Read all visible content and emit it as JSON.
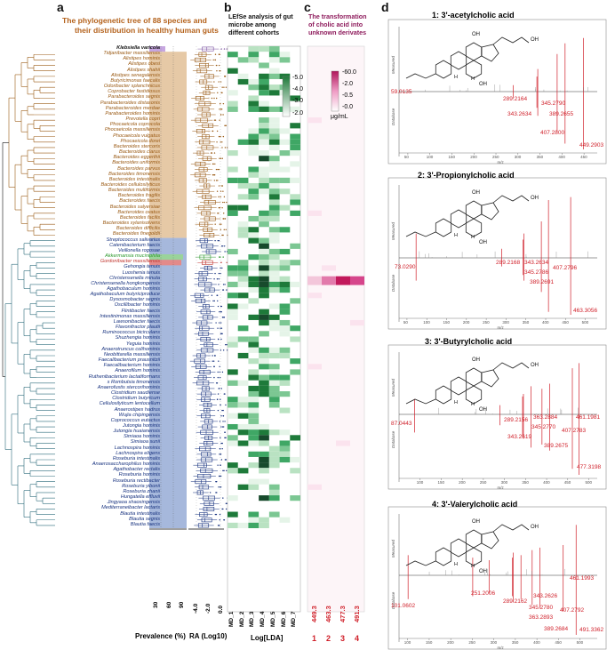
{
  "panel_labels": {
    "a": "a",
    "b": "b",
    "c": "c",
    "d": "d"
  },
  "panel_a": {
    "title_line1": "The phylogenetic tree of 88 species and",
    "title_line2": "their distribution in healthy human guts",
    "prevalence_label": "Prevalence (%)",
    "ra_label": "RA (Log10)",
    "prevalence_ticks": [
      "30",
      "60",
      "90"
    ],
    "ra_ticks": [
      "-4.0",
      "-2.0",
      "0.0"
    ],
    "colors": {
      "brown": "#9a5a14",
      "blue": "#17327f",
      "green": "#2e9a2e",
      "red": "#c0342c"
    },
    "species": [
      {
        "name": "Klebsiella varicola",
        "c": "k"
      },
      {
        "name": "Tidjanibacter massiliensis",
        "c": "brown"
      },
      {
        "name": "Alistipes hominis",
        "c": "brown"
      },
      {
        "name": "Alistipes obesi",
        "c": "brown"
      },
      {
        "name": "Alistipes shahii",
        "c": "brown"
      },
      {
        "name": "Alistipes senegalensis",
        "c": "brown"
      },
      {
        "name": "Butyricimonas faecalis",
        "c": "brown"
      },
      {
        "name": "Odoribacter splanchnicus",
        "c": "brown"
      },
      {
        "name": "Coprobacter fastidiosus",
        "c": "brown"
      },
      {
        "name": "Parabacteroides segnis",
        "c": "brown"
      },
      {
        "name": "Parabacteroides distasonis",
        "c": "brown"
      },
      {
        "name": "Parabacteroides merdae",
        "c": "brown"
      },
      {
        "name": "Parabacteroides hominis",
        "c": "brown"
      },
      {
        "name": "Prevotella copri",
        "c": "brown"
      },
      {
        "name": "Phocaeicola coprocola",
        "c": "brown"
      },
      {
        "name": "Phocaeicola massiliensis",
        "c": "brown"
      },
      {
        "name": "Phocaeicola vulgatus",
        "c": "brown"
      },
      {
        "name": "Phocaeicola dorei",
        "c": "brown"
      },
      {
        "name": "Bacteroides stercoris",
        "c": "brown"
      },
      {
        "name": "Bacteroides clarus",
        "c": "brown"
      },
      {
        "name": "Bacteroides eggerthii",
        "c": "brown"
      },
      {
        "name": "Bacteroides uniformis",
        "c": "brown"
      },
      {
        "name": "Bacteroides parvus",
        "c": "brown"
      },
      {
        "name": "Bacteroides timonensis",
        "c": "brown"
      },
      {
        "name": "Bacteroides intestinalis",
        "c": "brown"
      },
      {
        "name": "Bacteroides cellulosilyticus",
        "c": "brown"
      },
      {
        "name": "Bacteroides multiformis",
        "c": "brown"
      },
      {
        "name": "Bacteroides fragilis",
        "c": "brown"
      },
      {
        "name": "Bacteroides faecis",
        "c": "brown"
      },
      {
        "name": "Bacteroides salyersiae",
        "c": "brown"
      },
      {
        "name": "Bacteroides ovatus",
        "c": "brown"
      },
      {
        "name": "Bacteroides facilis",
        "c": "brown"
      },
      {
        "name": "Bacteroides xylanisolvens",
        "c": "brown"
      },
      {
        "name": "Bacteroides difficilis",
        "c": "brown"
      },
      {
        "name": "Bacteroides finegoldii",
        "c": "brown"
      },
      {
        "name": "Streptococcus salivarius",
        "c": "blue"
      },
      {
        "name": "Catenibacterium faecis",
        "c": "blue"
      },
      {
        "name": "Veillonella rogosae",
        "c": "blue"
      },
      {
        "name": "Akkermansia muciniphila",
        "c": "green"
      },
      {
        "name": "Gordonibacter massiliensis",
        "c": "red"
      },
      {
        "name": "Gehongia tenuis",
        "c": "blue"
      },
      {
        "name": "Luoshenia tenuis",
        "c": "blue"
      },
      {
        "name": "Christensenella minuta",
        "c": "blue"
      },
      {
        "name": "Christensenella hongkongensis",
        "c": "blue"
      },
      {
        "name": "Agathobaculum hominis",
        "c": "blue"
      },
      {
        "name": "Agathobaculum butyriciproduce",
        "c": "blue"
      },
      {
        "name": "Dysosmobacter segnis",
        "c": "blue"
      },
      {
        "name": "Oscillibacter hominis",
        "c": "blue"
      },
      {
        "name": "Flintibacter faecis",
        "c": "blue"
      },
      {
        "name": "Intestinimonas massiliensis",
        "c": "blue"
      },
      {
        "name": "Lawsonibacter faecis",
        "c": "blue"
      },
      {
        "name": "Flavonifractor plautii",
        "c": "blue"
      },
      {
        "name": "Ruminococcus bicirculans",
        "c": "blue"
      },
      {
        "name": "Shuzhengia hominis",
        "c": "blue"
      },
      {
        "name": "Yeguia hominis",
        "c": "blue"
      },
      {
        "name": "Anaerotruncus colihominis",
        "c": "blue"
      },
      {
        "name": "Neobittarella massiliensis",
        "c": "blue"
      },
      {
        "name": "Faecalibacterium prausnitzii",
        "c": "blue"
      },
      {
        "name": "Faecalibacterium hominis",
        "c": "blue"
      },
      {
        "name": "Anaerofilum hominis",
        "c": "blue"
      },
      {
        "name": "Ruthenibacterium lactatiformans",
        "c": "blue"
      },
      {
        "name": "s Rombutsia timonensis",
        "c": "blue"
      },
      {
        "name": "Anaerofustis stercorihominis",
        "c": "blue"
      },
      {
        "name": "Clostridium saudiense",
        "c": "blue"
      },
      {
        "name": "Clostridium butyricum",
        "c": "blue"
      },
      {
        "name": "Cellulosilyticum lentocellum",
        "c": "blue"
      },
      {
        "name": "Anaerostipes hadrus",
        "c": "blue"
      },
      {
        "name": "Wujia chipingensis",
        "c": "blue"
      },
      {
        "name": "Coprococcus eutactus",
        "c": "blue"
      },
      {
        "name": "Jutongia hominis",
        "c": "blue"
      },
      {
        "name": "Jutongia huaianensis",
        "c": "blue"
      },
      {
        "name": "Simiaoa hominis",
        "c": "blue"
      },
      {
        "name": "Simiaoa sunii",
        "c": "blue"
      },
      {
        "name": "Lachnospira hominis",
        "c": "blue"
      },
      {
        "name": "Lachnospira eligens",
        "c": "blue"
      },
      {
        "name": "Roseburia intestinalis",
        "c": "blue"
      },
      {
        "name": "Anaerosaccharophilus hominis",
        "c": "blue"
      },
      {
        "name": "Agathobacter rectalis",
        "c": "blue"
      },
      {
        "name": "Roseburia hominis",
        "c": "blue"
      },
      {
        "name": "Roseburia rectibacter",
        "c": "blue"
      },
      {
        "name": "Roseburia yibonii",
        "c": "blue"
      },
      {
        "name": "Roseburia zhanii",
        "c": "blue"
      },
      {
        "name": "Hungatella effluvii",
        "c": "blue"
      },
      {
        "name": "Jingyaoa shaoxingensis",
        "c": "blue"
      },
      {
        "name": "Mediterraneibacter lactaris",
        "c": "blue"
      },
      {
        "name": "Blautia intestinalis",
        "c": "blue"
      },
      {
        "name": "Blautia segnis",
        "c": "blue"
      },
      {
        "name": "Blautia faecis",
        "c": "blue"
      }
    ]
  },
  "panel_b": {
    "title_line1": "LEfSe analysis of gut",
    "title_line2": "microbe among",
    "title_line3": "different cohorts",
    "columns": [
      "MD_1",
      "MD_2",
      "MD_3",
      "MD_4",
      "MD_5",
      "MD_6",
      "MD_7"
    ],
    "xlabel": "Log[LDA]",
    "legend_ticks": [
      "-5.0",
      "-4.0",
      "-3.0",
      "-2.0"
    ],
    "legend_low_color": "#ffffff",
    "legend_high_color": "#1e7a3a"
  },
  "panel_c": {
    "title_line1": "The transformation",
    "title_line2": "of cholic acid into",
    "title_line3": "unknown derivates",
    "columns": [
      "449.3",
      "463.3",
      "477.3",
      "491.3"
    ],
    "column_numbers": [
      "1",
      "2",
      "3",
      "4"
    ],
    "legend_ticks": [
      "-60.0",
      "-2.0",
      "-0.5",
      "-0.0"
    ],
    "legend_unit": "μg/mL",
    "accent": "#c2185b"
  },
  "panel_d": {
    "spectra": [
      {
        "title": "1: 3'-acetylcholic acid",
        "peaks": [
          "59.0135",
          "289.2164",
          "345.2790",
          "343.2634",
          "389.2655",
          "407.2800",
          "449.2903"
        ],
        "axis_ticks": [
          "50",
          "100",
          "150",
          "200",
          "250",
          "300",
          "350",
          "400",
          "450"
        ]
      },
      {
        "title": "2: 3'-Propionylcholic acid",
        "peaks": [
          "73.0290",
          "289.2168",
          "343.2634",
          "345.2786",
          "407.2796",
          "389.2691",
          "463.3056"
        ],
        "axis_ticks": [
          "50",
          "100",
          "150",
          "200",
          "250",
          "300",
          "350",
          "400",
          "450",
          "500"
        ]
      },
      {
        "title": "3: 3'-Butyrylcholic acid",
        "peaks": [
          "87.0443",
          "289.2156",
          "363.2884",
          "345.2770",
          "407.2783",
          "343.2619",
          "389.2675",
          "461.1981",
          "477.3198"
        ],
        "axis_ticks": [
          "100",
          "150",
          "200",
          "250",
          "300",
          "350",
          "400",
          "450",
          "500"
        ]
      },
      {
        "title": "4: 3'-Valerylcholic acid",
        "peaks": [
          "101.0602",
          "251.2006",
          "289.2162",
          "343.2626",
          "345.2780",
          "407.2792",
          "363.2893",
          "389.2684",
          "461.1993",
          "491.3362"
        ],
        "axis_ticks": [
          "100",
          "150",
          "200",
          "250",
          "300",
          "350",
          "400",
          "450",
          "500"
        ]
      }
    ],
    "measured_label": "Measured",
    "database_label": "Database",
    "mz_label": "m/z",
    "oh_label": "OH",
    "h_label": "H"
  }
}
